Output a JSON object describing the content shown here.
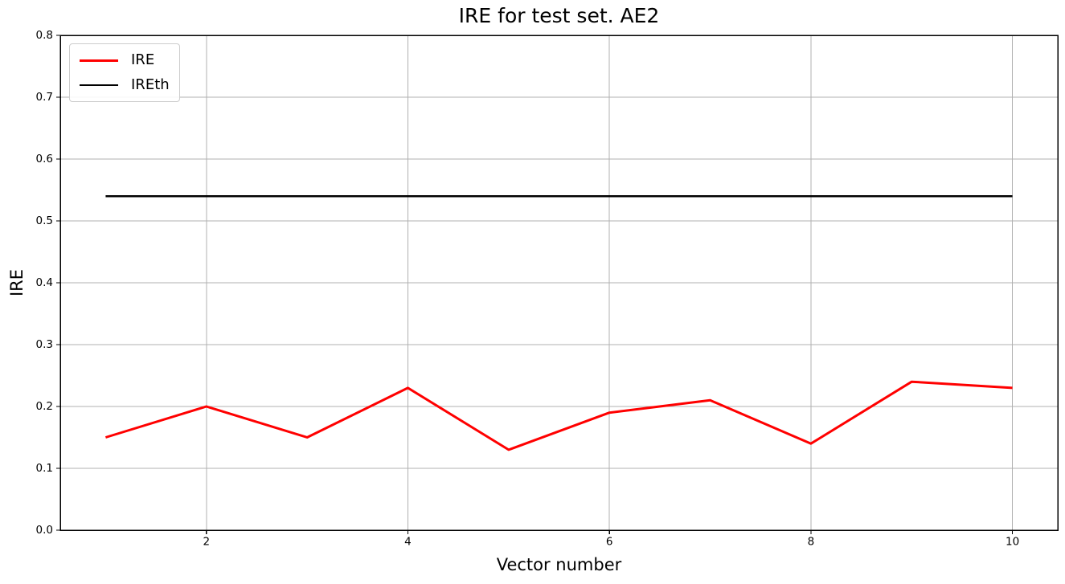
{
  "chart_data": {
    "type": "line",
    "title": "IRE for test set. AE2",
    "xlabel": "Vector number",
    "ylabel": "IRE",
    "x": [
      1,
      2,
      3,
      4,
      5,
      6,
      7,
      8,
      9,
      10
    ],
    "series": [
      {
        "name": "IRE",
        "color": "#ff0000",
        "linewidth": 3,
        "values": [
          0.15,
          0.2,
          0.15,
          0.23,
          0.13,
          0.19,
          0.21,
          0.14,
          0.24,
          0.23
        ]
      },
      {
        "name": "IREth",
        "color": "#000000",
        "linewidth": 2.5,
        "values": [
          0.54,
          0.54,
          0.54,
          0.54,
          0.54,
          0.54,
          0.54,
          0.54,
          0.54,
          0.54
        ]
      }
    ],
    "xlim": [
      0.55,
      10.45
    ],
    "ylim": [
      0.0,
      0.8
    ],
    "xticks": [
      2,
      4,
      6,
      8,
      10
    ],
    "xticklabels": [
      "2",
      "4",
      "6",
      "8",
      "10"
    ],
    "yticks": [
      0.0,
      0.1,
      0.2,
      0.3,
      0.4,
      0.5,
      0.6,
      0.7,
      0.8
    ],
    "yticklabels": [
      "0.0",
      "0.1",
      "0.2",
      "0.3",
      "0.4",
      "0.5",
      "0.6",
      "0.7",
      "0.8"
    ],
    "grid": true,
    "grid_color": "#b0b0b0",
    "legend_position": "upper left",
    "legend": [
      "IRE",
      "IREth"
    ]
  }
}
